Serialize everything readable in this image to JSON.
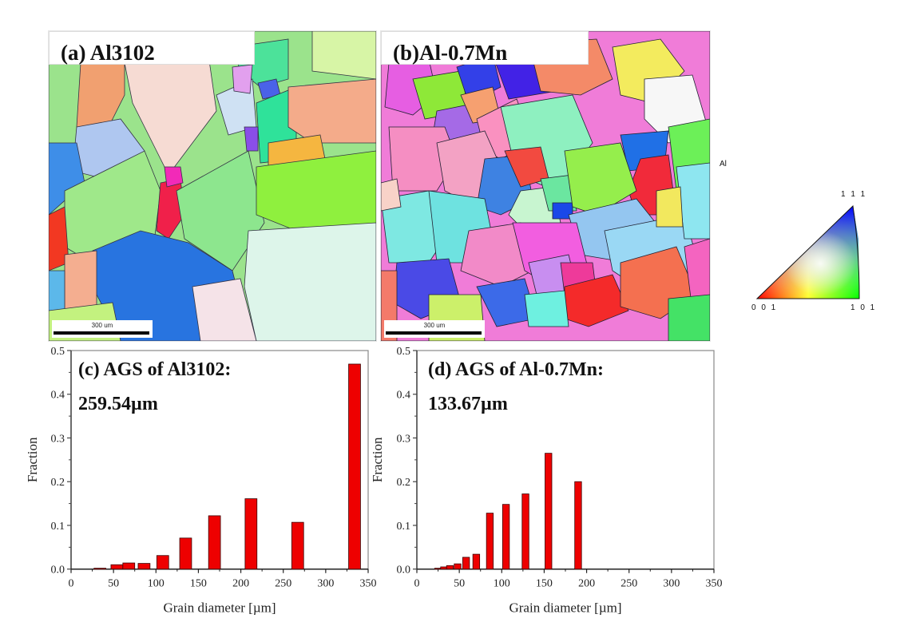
{
  "panels": {
    "a": {
      "label": "(a) Al3102",
      "scale_bar": "300 um"
    },
    "b": {
      "label": "(b)Al-0.7Mn",
      "scale_bar": "300 um"
    }
  },
  "ipf_key": {
    "phase": "Al",
    "corners": {
      "top": "1 1 1",
      "left": "0 0 1",
      "right": "1 0 1"
    }
  },
  "chart_data": [
    {
      "id": "c",
      "type": "bar",
      "annotation_line1": "(c) AGS of Al3102:",
      "annotation_line2": "259.54µm",
      "xlabel": "Grain diameter [µm]",
      "ylabel": "Fraction",
      "xlim": [
        0,
        350
      ],
      "ylim": [
        0,
        0.5
      ],
      "xticks": [
        "0",
        "50",
        "100",
        "150",
        "200",
        "250",
        "300",
        "350"
      ],
      "yticks": [
        "0.0",
        "0.1",
        "0.2",
        "0.3",
        "0.4",
        "0.5"
      ],
      "bar_color": "#ee0000",
      "bar_width_um": 14,
      "x": [
        34,
        54,
        68,
        86,
        108,
        135,
        169,
        212,
        267,
        334
      ],
      "values": [
        0.002,
        0.01,
        0.014,
        0.013,
        0.031,
        0.071,
        0.122,
        0.161,
        0.107,
        0.469
      ]
    },
    {
      "id": "d",
      "type": "bar",
      "annotation_line1": "(d) AGS of Al-0.7Mn:",
      "annotation_line2": "133.67µm",
      "xlabel": "Grain diameter [µm]",
      "ylabel": "Fraction",
      "xlim": [
        0,
        350
      ],
      "ylim": [
        0,
        0.5
      ],
      "xticks": [
        "0",
        "50",
        "100",
        "150",
        "200",
        "250",
        "300",
        "350"
      ],
      "yticks": [
        "0.0",
        "0.1",
        "0.2",
        "0.3",
        "0.4",
        "0.5"
      ],
      "bar_color": "#ee0000",
      "bar_width_um": 8,
      "x": [
        25,
        32,
        39,
        48,
        58,
        70,
        86,
        105,
        128,
        155,
        190
      ],
      "values": [
        0.002,
        0.005,
        0.008,
        0.012,
        0.027,
        0.034,
        0.128,
        0.148,
        0.172,
        0.265,
        0.2
      ]
    }
  ]
}
